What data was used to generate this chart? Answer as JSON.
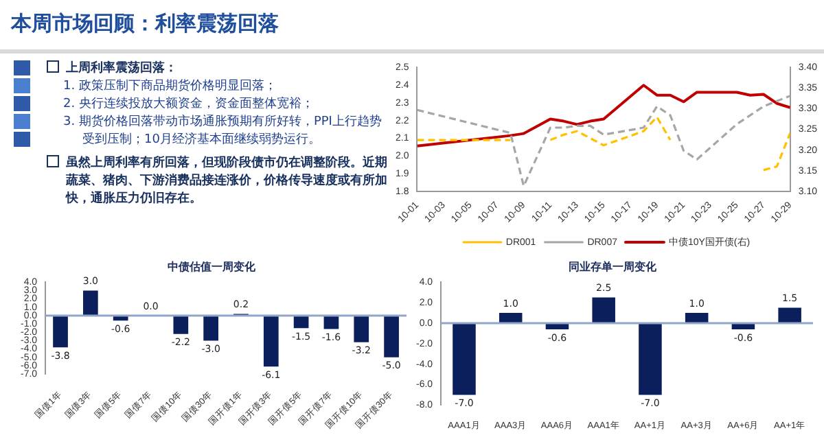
{
  "chart_data": [
    {
      "type": "other",
      "title": "本周市场回顾：利率震荡回落",
      "annotations": [
        "上周利率震荡回落：",
        "1. 政策压制下商品期货价格明显回落；",
        "2. 央行连续投放大额资金，资金面整体宽裕；",
        "3. 期货价格回落带动市场通胀预期有所好转，PPI上行趋势受到压制；10月经济基本面继续弱势运行。",
        "虽然上周利率有所回落，但现阶段债市仍在调整阶段。近期蔬菜、猪肉、下游消费品接连涨价，价格传导速度或有所加快，通胀压力仍旧存在。"
      ]
    },
    {
      "type": "line",
      "legend": "bottom",
      "marker": "none",
      "xlim": [
        "--10-01",
        "--10-29"
      ],
      "xticks": [
        {
          "value": "--10-01",
          "label": "10-01"
        },
        {
          "value": "--10-03",
          "label": "10-03"
        },
        {
          "value": "--10-05",
          "label": "10-05"
        },
        {
          "value": "--10-07",
          "label": "10-07"
        },
        {
          "value": "--10-09",
          "label": "10-09"
        },
        {
          "value": "--10-11",
          "label": "10-11"
        },
        {
          "value": "--10-13",
          "label": "10-13"
        },
        {
          "value": "--10-15",
          "label": "10-15"
        },
        {
          "value": "--10-17",
          "label": "10-17"
        },
        {
          "value": "--10-19",
          "label": "10-19"
        },
        {
          "value": "--10-21",
          "label": "10-21"
        },
        {
          "value": "--10-23",
          "label": "10-23"
        },
        {
          "value": "--10-25",
          "label": "10-25"
        },
        {
          "value": "--10-27",
          "label": "10-27"
        },
        {
          "value": "--10-29",
          "label": "10-29"
        }
      ],
      "x": [
        "--10-01",
        "--10-08",
        "--10-09",
        "--10-11",
        "--10-12",
        "--10-13",
        "--10-14",
        "--10-15",
        "--10-18",
        "--10-19",
        "--10-20",
        "--10-21",
        "--10-22",
        "--10-25",
        "--10-26",
        "--10-27",
        "--10-28",
        "--10-29"
      ],
      "ylim": [
        1.8,
        2.5
      ],
      "yticks": [
        1.8,
        1.9,
        {
          "value": 2,
          "label": "2.0"
        },
        2.1,
        2.2,
        2.3,
        2.4,
        2.5
      ],
      "y2lim": [
        3.1,
        3.4
      ],
      "y2ticks": [
        {
          "value": 3.1,
          "label": "3.10"
        },
        {
          "value": 3.15,
          "label": "3.15"
        },
        {
          "value": 3.2,
          "label": "3.20"
        },
        {
          "value": 3.25,
          "label": "3.25"
        },
        {
          "value": 3.3,
          "label": "3.30"
        },
        {
          "value": 3.35,
          "label": "3.35"
        },
        {
          "value": 3.4,
          "label": "3.40"
        }
      ],
      "series": [
        {
          "name": "DR001",
          "color": "#ffc000",
          "line_style": "dashed",
          "values": [
            2.09,
            2.09,
            null,
            2.09,
            2.12,
            2.14,
            2.1,
            2.06,
            2.14,
            2.22,
            2.09,
            null,
            null,
            null,
            null,
            1.92,
            1.94,
            2.13
          ]
        },
        {
          "name": "DR007",
          "color": "#a6a6a6",
          "line_style": "dashed",
          "values": [
            2.26,
            2.13,
            1.83,
            2.16,
            2.16,
            2.17,
            2.17,
            2.12,
            2.16,
            2.28,
            2.23,
            2.03,
            1.98,
            2.18,
            2.23,
            2.28,
            2.31,
            2.34
          ]
        },
        {
          "name": "中债10Y国开债(右)",
          "color": "#c00000",
          "line_style": "solid",
          "axis": "y2",
          "values": [
            3.21,
            3.235,
            3.24,
            3.275,
            3.27,
            3.262,
            3.27,
            3.275,
            3.357,
            3.333,
            3.333,
            3.317,
            3.34,
            3.34,
            3.333,
            3.335,
            3.313,
            3.303
          ]
        }
      ]
    },
    {
      "type": "bar",
      "title": "中债估值一周变化",
      "color": "#0b1f5c",
      "categories": [
        "国债1年",
        "国债3年",
        "国债5年",
        "国债7年",
        "国债10年",
        "国债30年",
        "国开债1年",
        "国开债3年",
        "国开债5年",
        "国开债7年",
        "国开债10年",
        "国开债30年"
      ],
      "values": [
        -3.8,
        3.0,
        -0.6,
        0.0,
        -2.2,
        -3.0,
        0.2,
        -6.1,
        -1.5,
        -1.6,
        -3.2,
        -5.0
      ],
      "value_labels": [
        "-3.8",
        "3.0",
        "-0.6",
        "0.0",
        "-2.2",
        "-3.0",
        "0.2",
        "-6.1",
        "-1.5",
        "-1.6",
        "-3.2",
        "-5.0"
      ],
      "ref_lines": [
        {
          "axis": "y",
          "value": 0,
          "color": "#8fa6c9"
        }
      ],
      "ylim": [
        -7,
        4
      ],
      "yticks": [
        {
          "value": -7,
          "label": "-7.0"
        },
        {
          "value": -6,
          "label": "-6.0"
        },
        {
          "value": -5,
          "label": "-5.0"
        },
        {
          "value": -4,
          "label": "-4.0"
        },
        {
          "value": -3,
          "label": "-3.0"
        },
        {
          "value": -2,
          "label": "-2.0"
        },
        {
          "value": -1,
          "label": "-1.0"
        },
        {
          "value": 0,
          "label": "0.0"
        },
        {
          "value": 1,
          "label": "1.0"
        },
        {
          "value": 2,
          "label": "2.0"
        },
        {
          "value": 3,
          "label": "3.0"
        },
        {
          "value": 4,
          "label": "4.0"
        }
      ]
    },
    {
      "type": "bar",
      "title": "同业存单一周变化",
      "color": "#0b1f5c",
      "categories": [
        "AAA1月",
        "AAA3月",
        "AAA6月",
        "AAA1年",
        "AA+1月",
        "AA+3月",
        "AA+6月",
        "AA+1年"
      ],
      "values": [
        -7.0,
        1.0,
        -0.6,
        2.5,
        -7.0,
        1.0,
        -0.6,
        1.5
      ],
      "value_labels": [
        "-7.0",
        "1.0",
        "-0.6",
        "2.5",
        "-7.0",
        "1.0",
        "-0.6",
        "1.5"
      ],
      "ref_lines": [
        {
          "axis": "y",
          "value": 0,
          "color": "#8fa6c9"
        }
      ],
      "ylim": [
        -8,
        4
      ],
      "yticks": [
        {
          "value": -8,
          "label": "-8.0"
        },
        {
          "value": -6,
          "label": "-6.0"
        },
        {
          "value": -4,
          "label": "-4.0"
        },
        {
          "value": -2,
          "label": "-2.0"
        },
        {
          "value": 0,
          "label": "0.0"
        },
        {
          "value": 2,
          "label": "2.0"
        },
        {
          "value": 4,
          "label": "4.0"
        }
      ]
    }
  ]
}
